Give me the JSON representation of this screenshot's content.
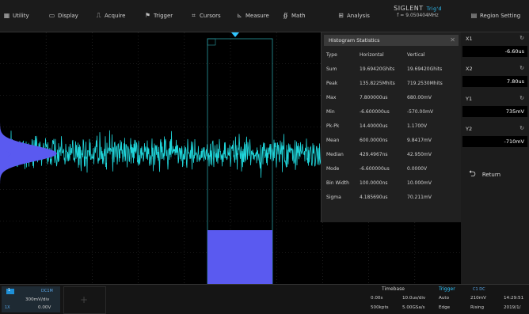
{
  "menu": {
    "utility": "Utility",
    "display": "Display",
    "acquire": "Acquire",
    "trigger": "Trigger",
    "cursors": "Cursors",
    "measure": "Measure",
    "math": "Math",
    "analysis": "Analysis",
    "region_setting": "Region Setting"
  },
  "brand": {
    "name": "SIGLENT",
    "trig_status": "Trig'd",
    "freq": "f = 9.050404MHz"
  },
  "histogram": {
    "title": "Histogram Statistics",
    "header": {
      "type": "Type",
      "horizontal": "Horizontal",
      "vertical": "Vertical"
    },
    "rows": [
      {
        "name": "Sum",
        "h": "19.69420Ghits",
        "v": "19.69420Ghits"
      },
      {
        "name": "Peak",
        "h": "135.8225Mhits",
        "v": "719.2530Mhits"
      },
      {
        "name": "Max",
        "h": "7.800000us",
        "v": "680.00mV"
      },
      {
        "name": "Min",
        "h": "-6.600000us",
        "v": "-570.00mV"
      },
      {
        "name": "Pk-Pk",
        "h": "14.40000us",
        "v": "1.1700V"
      },
      {
        "name": "Mean",
        "h": "600.0000ns",
        "v": "9.8417mV"
      },
      {
        "name": "Median",
        "h": "429.4967ns",
        "v": "42.950mV"
      },
      {
        "name": "Mode",
        "h": "-6.600000us",
        "v": "0.0000V"
      },
      {
        "name": "Bin Width",
        "h": "100.0000ns",
        "v": "10.000mV"
      },
      {
        "name": "Sigma",
        "h": "4.185690us",
        "v": "70.211mV"
      }
    ]
  },
  "cursors": {
    "x1": {
      "label": "X1",
      "value": "-6.60us"
    },
    "x2": {
      "label": "X2",
      "value": "7.80us"
    },
    "y1": {
      "label": "Y1",
      "value": "735mV"
    },
    "y2": {
      "label": "Y2",
      "value": "-710mV"
    },
    "return_label": "Return"
  },
  "status": {
    "ch1": {
      "tag": "1",
      "coupling": "DC1M",
      "scale": "300mV/div",
      "offset": "0.00V"
    },
    "timebase": {
      "label": "Timebase",
      "delay": "0.00s",
      "scale": "10.0us/div",
      "points": "500kpts",
      "rate": "5.00GSa/s"
    },
    "trigger": {
      "label": "Trigger",
      "source": "C1 DC",
      "mode": "Auto",
      "level": "210mV",
      "type": "Edge",
      "slope": "Rising"
    },
    "clock": {
      "time": "14:29:51",
      "date": "2019/1/"
    }
  },
  "colors": {
    "waveform": "#22e0e6",
    "histogram": "#5a5af0",
    "accent": "#2fc6ff"
  },
  "icons": [
    "utility-icon",
    "display-icon",
    "acquire-icon",
    "trigger-icon",
    "cursors-icon",
    "measure-icon",
    "math-icon",
    "analysis-icon",
    "region-setting-icon",
    "return-arrow-icon",
    "refresh-icon"
  ]
}
